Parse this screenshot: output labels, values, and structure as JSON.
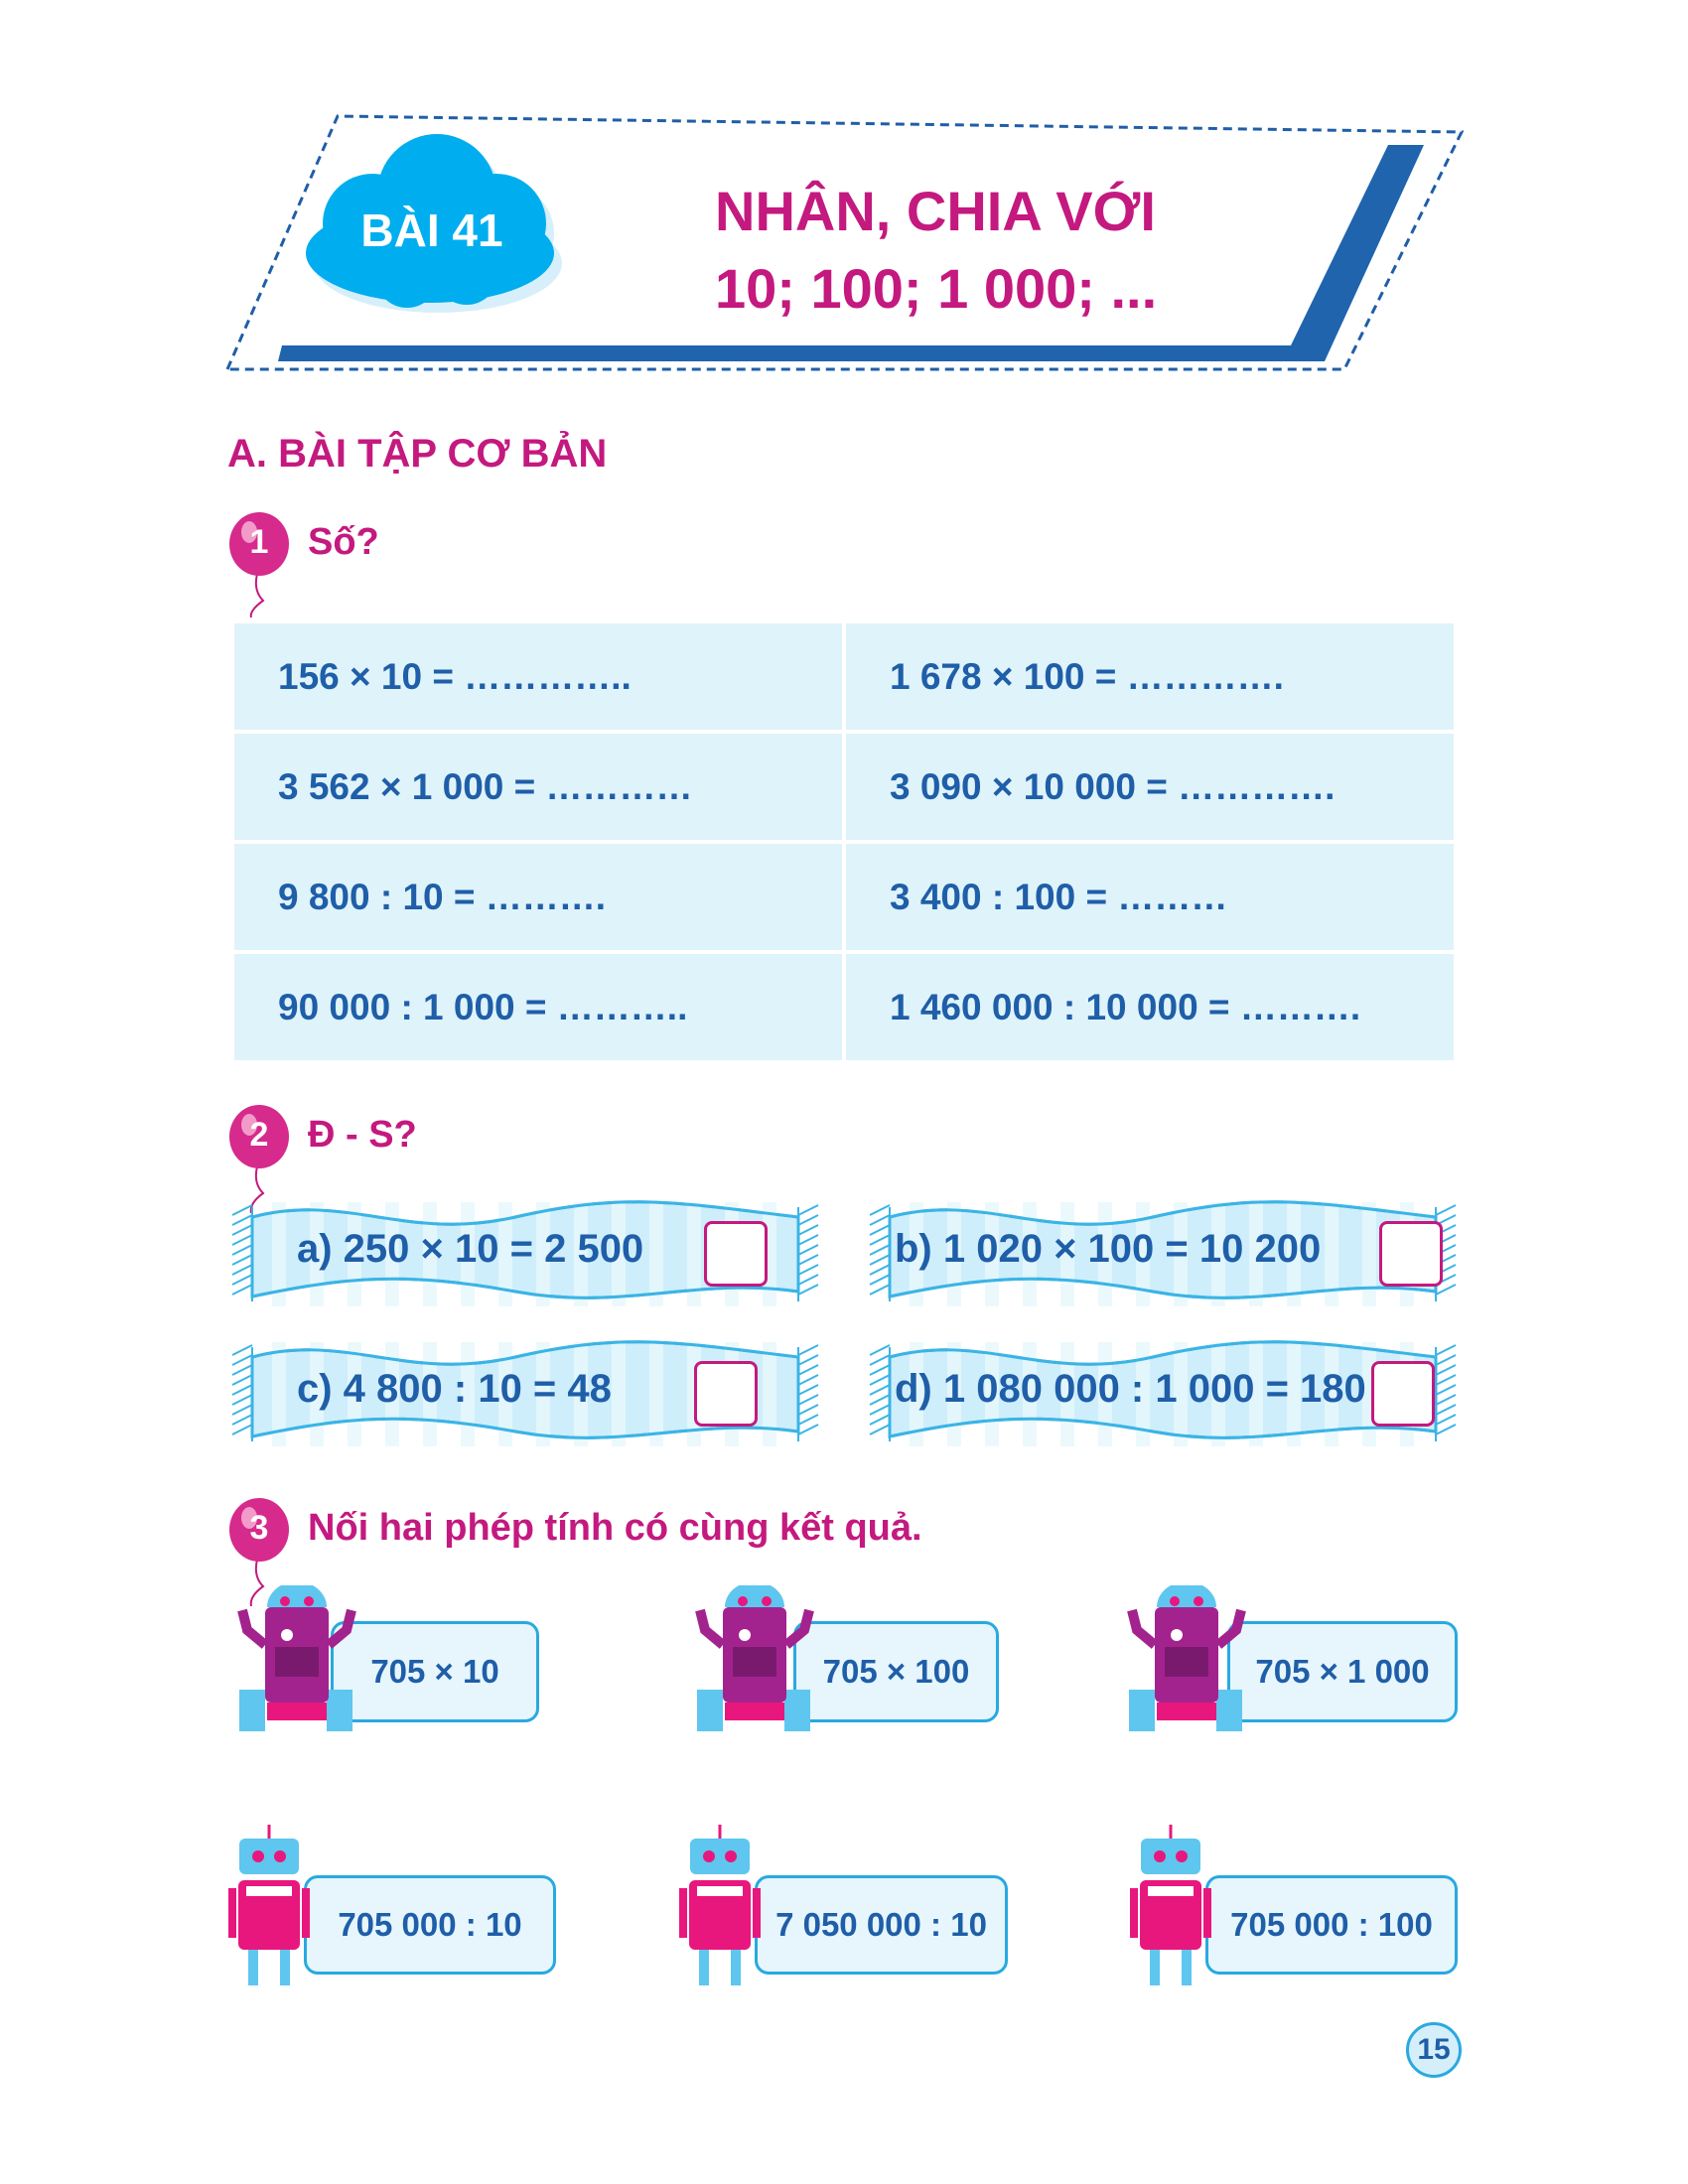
{
  "header": {
    "lesson": "BÀI 41",
    "title_line1": "NHÂN, CHIA VỚI",
    "title_line2": "10; 100; 1 000; ..."
  },
  "section_a": {
    "title": "A. BÀI TẬP CƠ BẢN"
  },
  "exercise1": {
    "number": "1",
    "prompt": "Số?",
    "rows": [
      [
        "156 × 10 = …………..",
        "1 678 × 100 = …………."
      ],
      [
        "3 562 × 1 000 = …………",
        "3 090 × 10 000 = …………."
      ],
      [
        "9 800 : 10 = ……….",
        "3 400 : 100 = ………"
      ],
      [
        "90 000 : 1 000 = ………..",
        "1 460 000 : 10 000 = ………."
      ]
    ]
  },
  "exercise2": {
    "number": "2",
    "prompt": "Đ - S?",
    "items": [
      "a) 250 × 10 = 2 500",
      "b) 1 020 × 100 = 10 200",
      "c) 4 800 : 10 = 48",
      "d) 1 080 000 : 1 000 = 180"
    ]
  },
  "exercise3": {
    "number": "3",
    "prompt": "Nối hai phép tính có cùng kết quả.",
    "top": [
      "705 × 10",
      "705 × 100",
      "705 × 1 000"
    ],
    "bottom": [
      "705 000 : 10",
      "7 050 000 : 10",
      "705 000 : 100"
    ]
  },
  "page_number": "15",
  "colors": {
    "accent": "#c4197f",
    "blue": "#1f5ea8",
    "cloud": "#00aeef",
    "table_bg": "#dff3fa"
  }
}
